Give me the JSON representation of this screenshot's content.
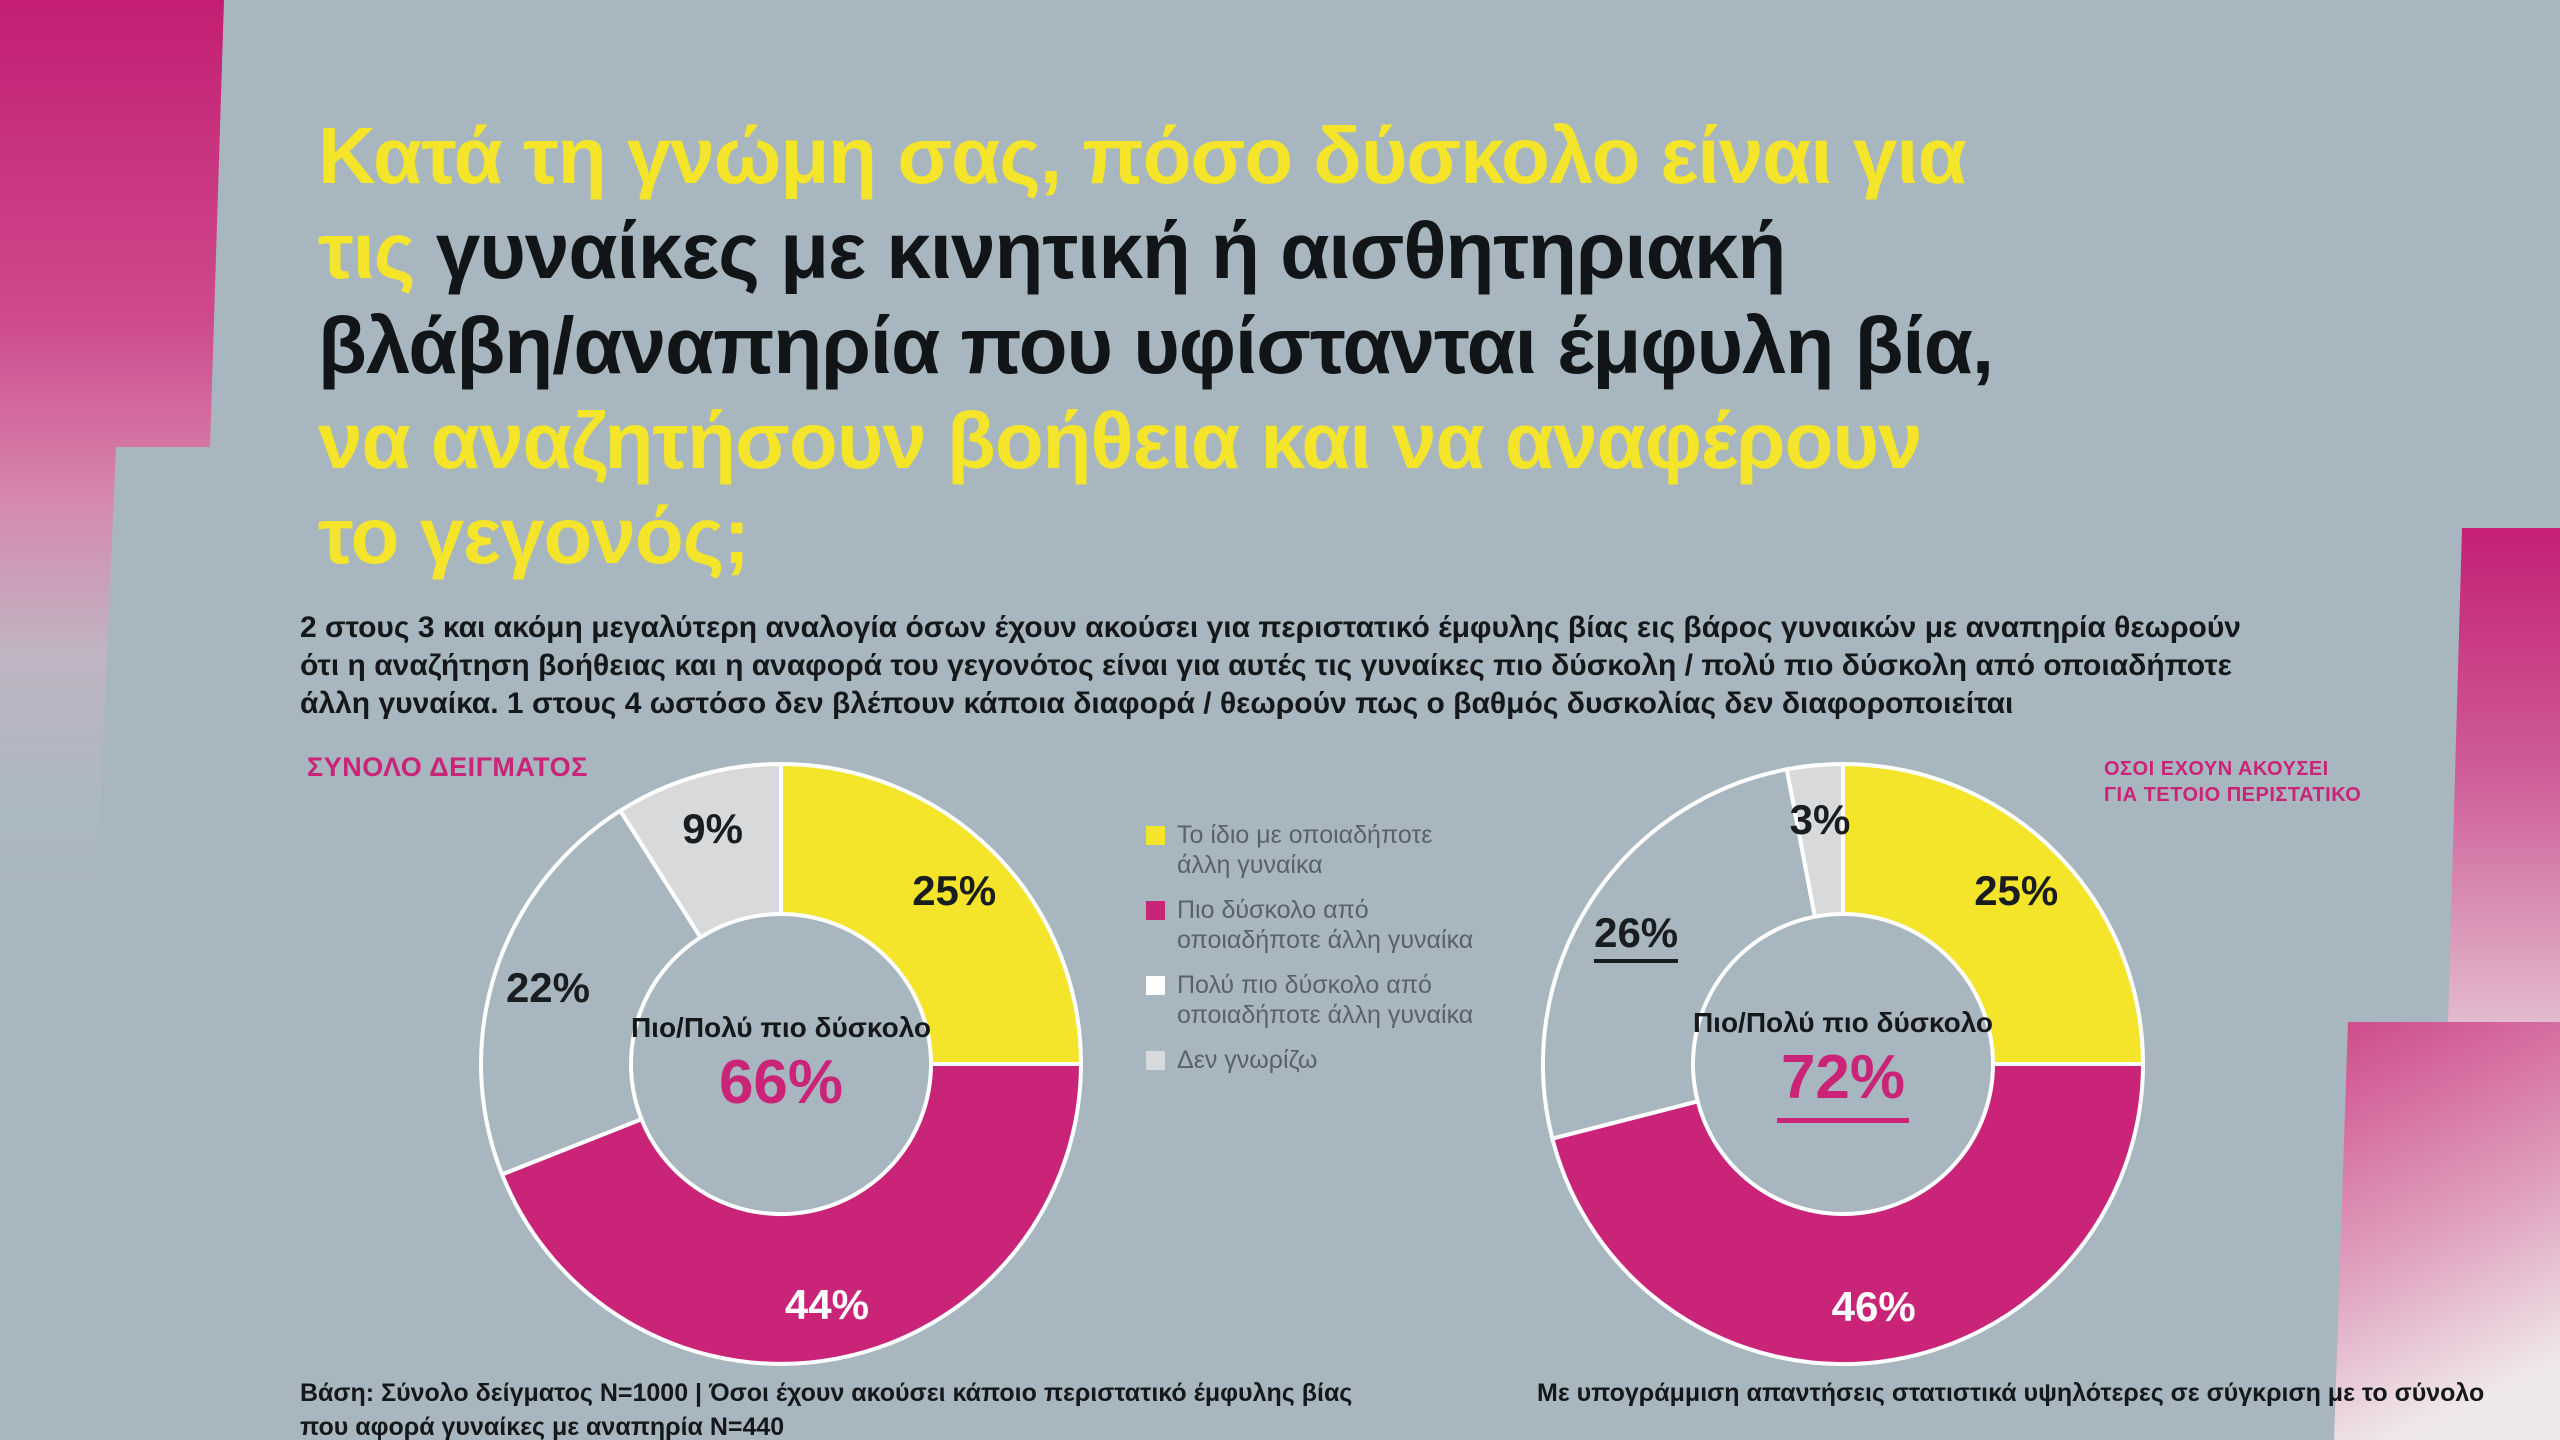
{
  "palette": {
    "background": "#A8B6BF",
    "yellow": "#F4E42A",
    "magenta": "#C92478",
    "light_gray": "#D7D9DB",
    "white": "#FFFFFF",
    "dark": "#1A1D1F",
    "legend_text": "#5A6268",
    "accent_gradient_top": "#C41E73"
  },
  "title": {
    "line1": "Κατά τη γνώμη σας, πόσο δύσκολο είναι για",
    "line2_highlight": "τις ",
    "line2_rest": "γυναίκες με κινητική ή αισθητηριακή",
    "line3": "βλάβη/αναπηρία που υφίστανται έμφυλη βία,",
    "line4": "να αναζητήσουν βοήθεια και να αναφέρουν",
    "line5": "το γεγονός;"
  },
  "subtitle": {
    "line1": "2 στους 3 και ακόμη μεγαλύτερη αναλογία όσων έχουν ακούσει για περιστατικό έμφυλης βίας εις βάρος γυναικών με αναπηρία θεωρούν",
    "line2": "ότι η αναζήτηση βοήθειας και η αναφορά του γεγονότος είναι για αυτές τις γυναίκες πιο δύσκολη / πολύ πιο δύσκολη από οποιαδήποτε",
    "line3": "άλλη γυναίκα.  1 στους 4 ωστόσο δεν βλέπουν κάποια διαφορά / θεωρούν πως ο βαθμός δυσκολίας δεν διαφοροποιείται"
  },
  "legend": {
    "items": [
      {
        "swatch": "yellow",
        "label": "Το ίδιο με οποιαδήποτε άλλη γυναίκα"
      },
      {
        "swatch": "magenta",
        "label": "Πιο δύσκολο από οποιαδήποτε άλλη γυναίκα"
      },
      {
        "swatch": "white",
        "label": "Πολύ πιο δύσκολο από οποιαδήποτε άλλη γυναίκα"
      },
      {
        "swatch": "light_gray",
        "label": "Δεν γνωρίζω"
      }
    ]
  },
  "chart_data": [
    {
      "type": "pie",
      "subtype": "donut",
      "name": "total-sample",
      "title": "ΣΥΝΟΛΟ ΔΕΙΓΜΑΤΟΣ",
      "categories": [
        "Το ίδιο με οποιαδήποτε άλλη γυναίκα",
        "Πιο δύσκολο από οποιαδήποτε άλλη γυναίκα",
        "Πολύ πιο δύσκολο από οποιαδήποτε άλλη γυναίκα",
        "Δεν γνωρίζω"
      ],
      "values": [
        25,
        44,
        22,
        9
      ],
      "data_labels": [
        "25%",
        "44%",
        "22%",
        "9%"
      ],
      "slice_colors": [
        "yellow",
        "magenta",
        "background",
        "light_gray"
      ],
      "slice_label_colors": [
        "dark",
        "white",
        "dark",
        "dark"
      ],
      "underlined_labels": [
        false,
        false,
        false,
        false
      ],
      "center_label": "Πιο/Πολύ πιο δύσκολο",
      "center_value": "66%",
      "center_value_underlined": false,
      "start_angle_deg": 0,
      "direction": "clockwise",
      "legend_position": "center-between-charts"
    },
    {
      "type": "pie",
      "subtype": "donut",
      "name": "heard-incident",
      "title": "ΟΣΟΙ ΕΧΟΥΝ ΑΚΟΥΣΕΙ ΓΙΑ ΤΕΤΟΙΟ ΠΕΡΙΣΤΑΤΙΚΟ",
      "title_line1": "ΟΣΟΙ ΕΧΟΥΝ ΑΚΟΥΣΕΙ",
      "title_line2": "ΓΙΑ ΤΕΤΟΙΟ ΠΕΡΙΣΤΑΤΙΚΟ",
      "categories": [
        "Το ίδιο με οποιαδήποτε άλλη γυναίκα",
        "Πιο δύσκολο από οποιαδήποτε άλλη γυναίκα",
        "Πολύ πιο δύσκολο από οποιαδήποτε άλλη γυναίκα",
        "Δεν γνωρίζω"
      ],
      "values": [
        25,
        46,
        26,
        3
      ],
      "data_labels": [
        "25%",
        "46%",
        "26%",
        "3%"
      ],
      "slice_colors": [
        "yellow",
        "magenta",
        "background",
        "light_gray"
      ],
      "slice_label_colors": [
        "dark",
        "white",
        "dark",
        "dark"
      ],
      "underlined_labels": [
        false,
        false,
        true,
        false
      ],
      "center_label": "Πιο/Πολύ πιο δύσκολο",
      "center_value": "72%",
      "center_value_underlined": true,
      "start_angle_deg": 0,
      "direction": "clockwise",
      "legend_position": "center-between-charts"
    }
  ],
  "footnotes": {
    "left_line1": "Βάση: Σύνολο δείγματος N=1000 | Όσοι έχουν ακούσει κάποιο περιστατικό έμφυλης βίας",
    "left_line2": "που αφορά γυναίκες με αναπηρία  N=440",
    "right": "Με υπογράμμιση απαντήσεις στατιστικά υψηλότερες σε σύγκριση με το σύνολο"
  }
}
